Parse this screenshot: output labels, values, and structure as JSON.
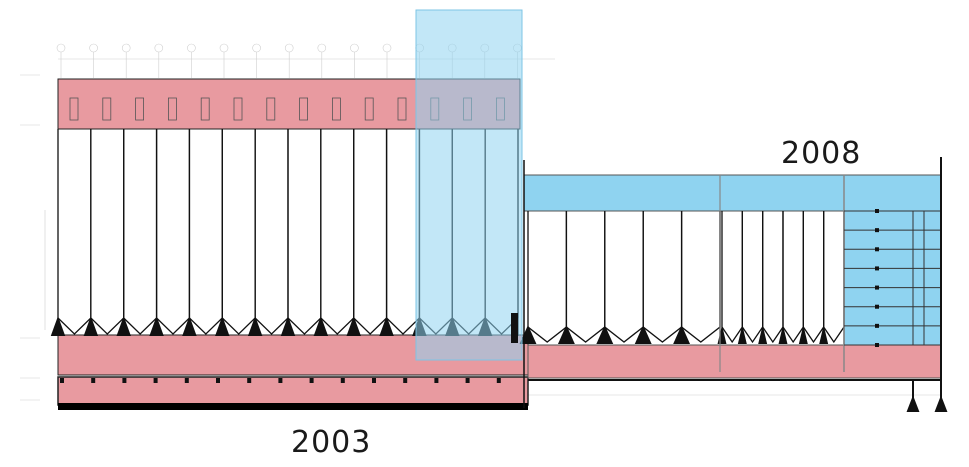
{
  "labels": {
    "phase_1": "2003",
    "phase_2": "2008"
  },
  "colors": {
    "pink_band": "#e89aa0",
    "blue_band": "#8fd3f0",
    "blue_overlay": "#a8dcf2",
    "line": "#111111",
    "faint_line": "#c8c8c8"
  },
  "building_elements": {
    "bays_2003": 14,
    "bays_2008_left": 5,
    "bays_2008_right": 6,
    "shelves_2008": 7
  }
}
